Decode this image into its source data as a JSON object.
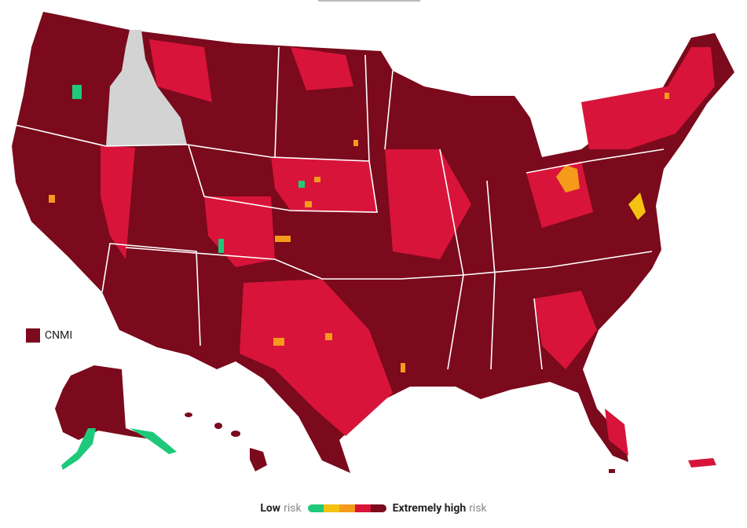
{
  "inset": {
    "label": "CNMI",
    "color": "#7a0a1c"
  },
  "legend": {
    "low": "Low",
    "low_suffix": "risk",
    "high": "Extremely high",
    "high_suffix": "risk",
    "colors": [
      "#1fc97a",
      "#f5c211",
      "#f59a1b",
      "#d8143a",
      "#7a0a1c"
    ]
  }
}
